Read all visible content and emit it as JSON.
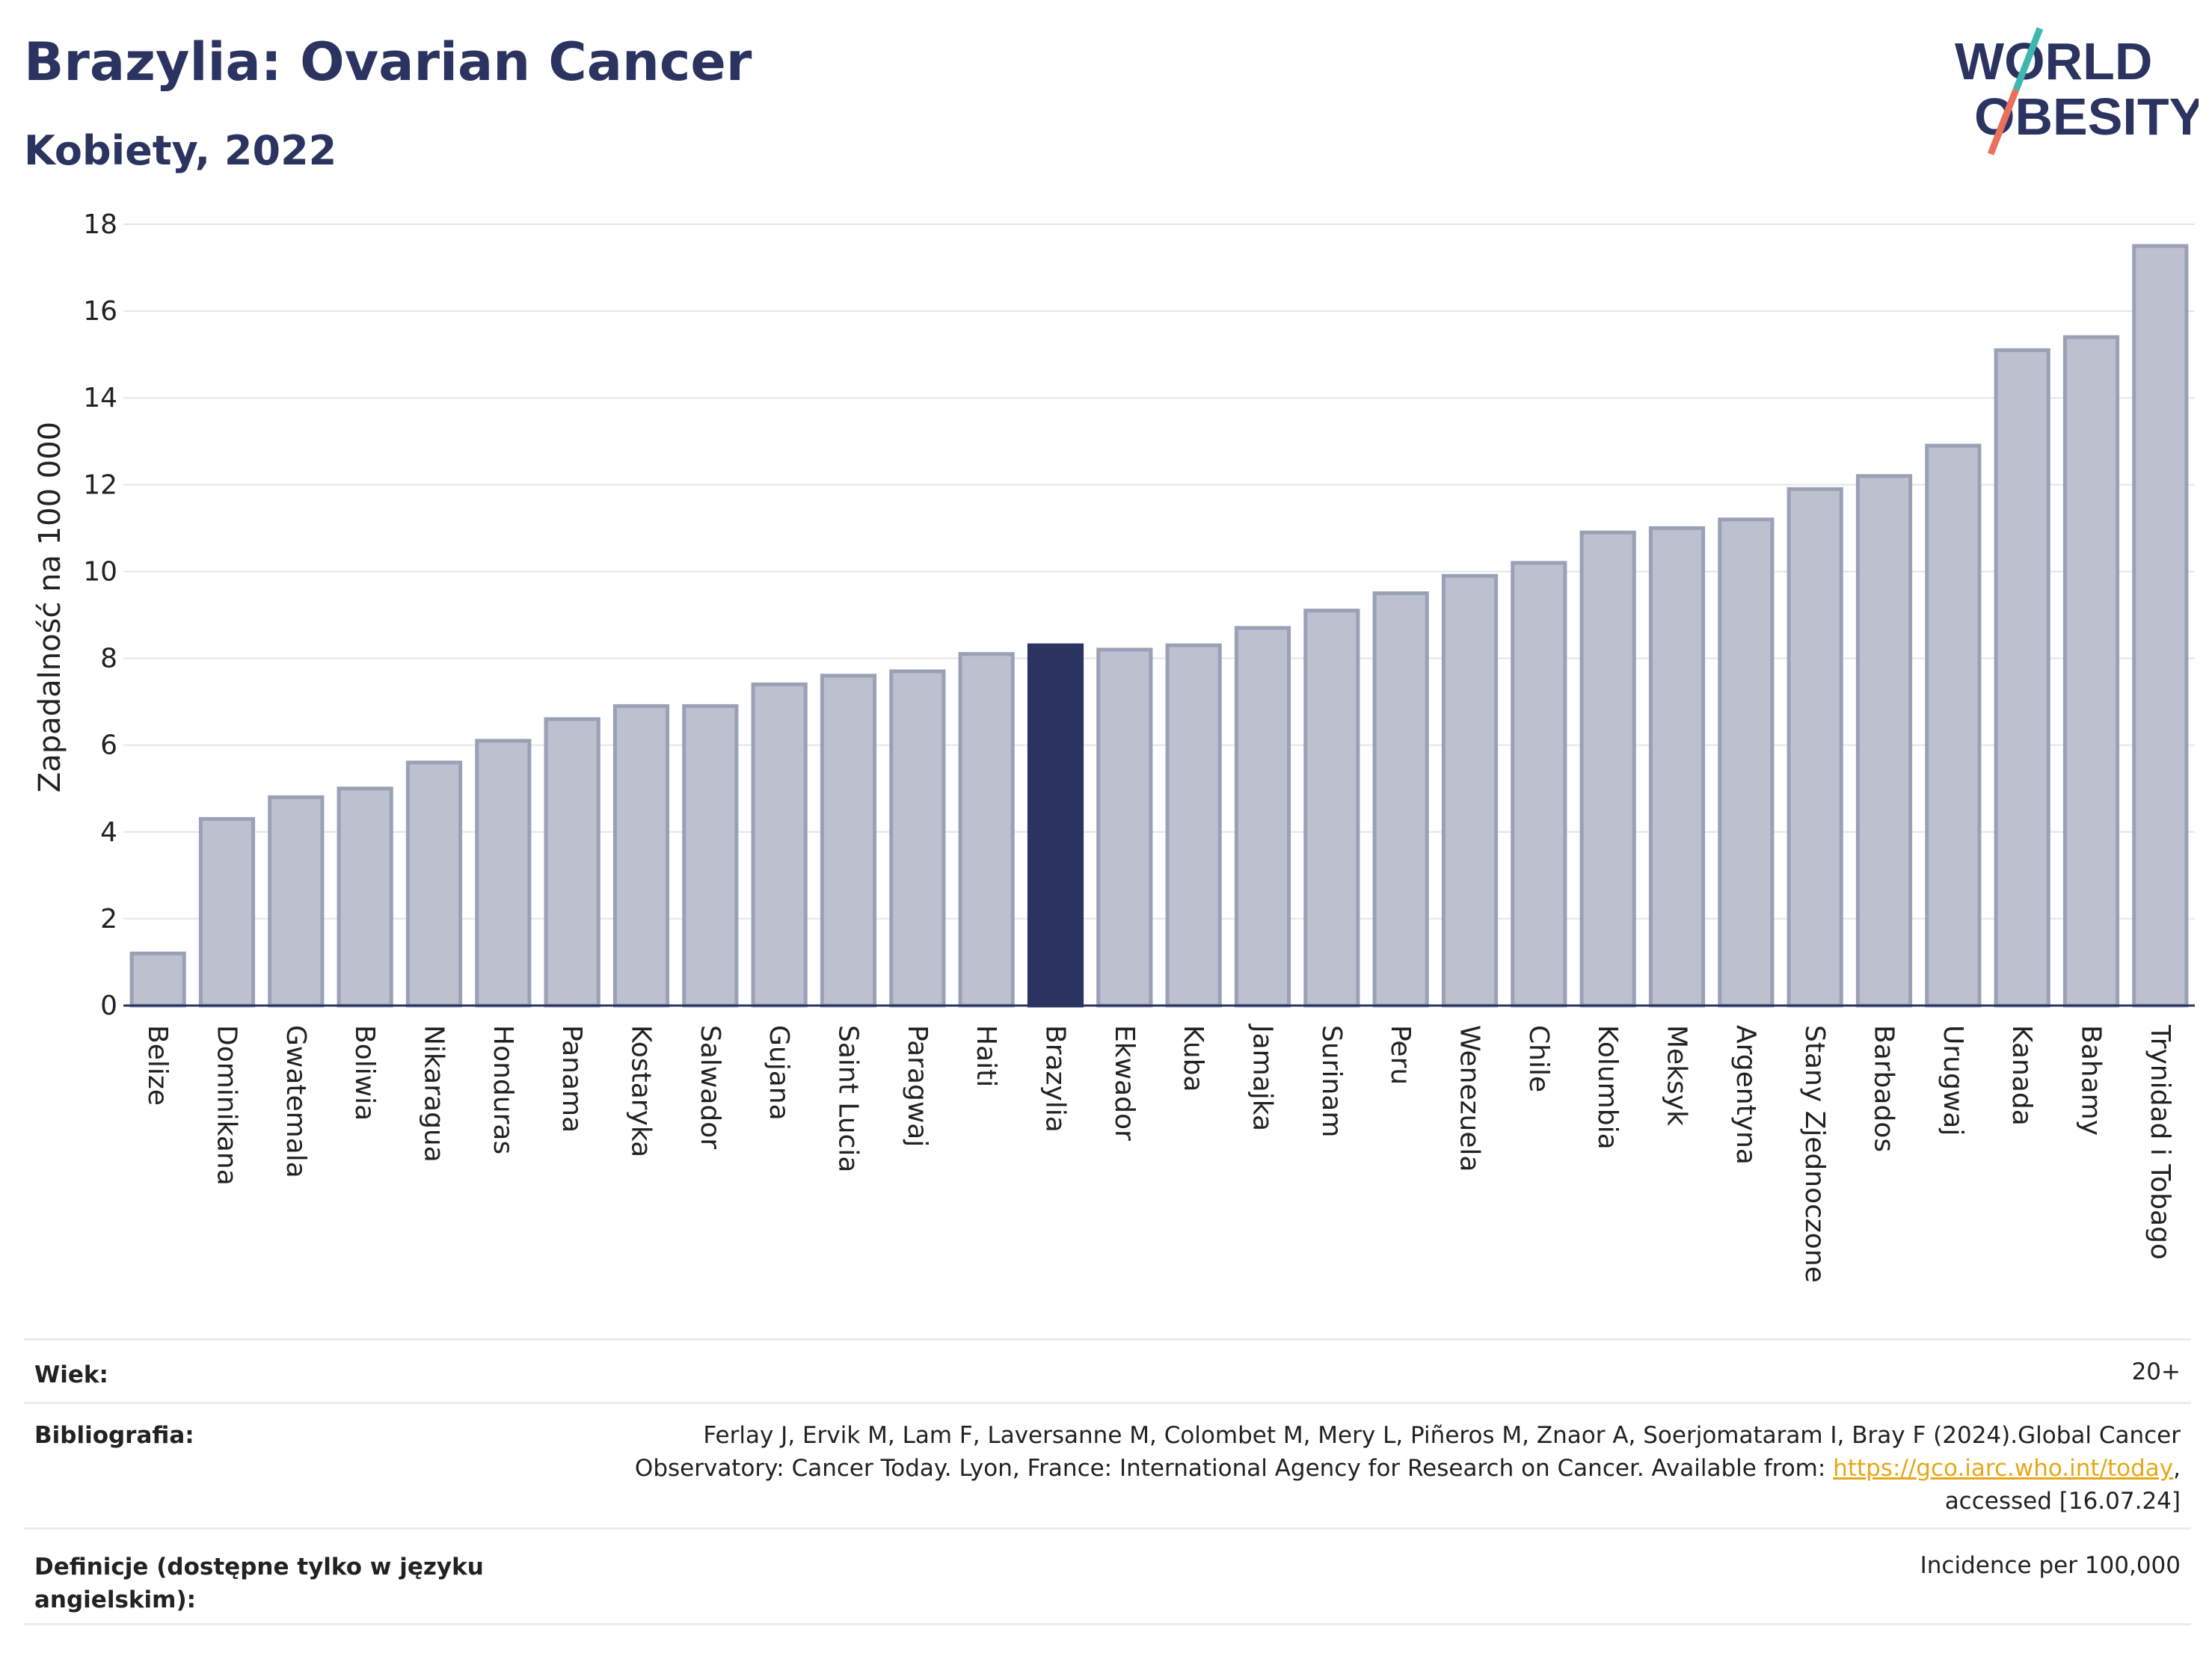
{
  "header": {
    "title": "Brazylia: Ovarian Cancer",
    "subtitle": "Kobiety, 2022",
    "logo_line1": "WORLD",
    "logo_line2": "OBESITY"
  },
  "colors": {
    "bar": "#bcc0cf",
    "bar_stroke": "#9aa0b6",
    "highlight": "#2b3460",
    "accent_teal": "#3fb7b1",
    "accent_coral": "#e8705c"
  },
  "chart_data": {
    "type": "bar",
    "ylabel": "Zapadalność na 100 000",
    "ylim": [
      0,
      18
    ],
    "yticks": [
      0,
      2,
      4,
      6,
      8,
      10,
      12,
      14,
      16,
      18
    ],
    "grid": true,
    "highlight": "Brazylia",
    "categories": [
      "Belize",
      "Dominikana",
      "Gwatemala",
      "Boliwia",
      "Nikaragua",
      "Honduras",
      "Panama",
      "Kostaryka",
      "Salwador",
      "Gujana",
      "Saint Lucia",
      "Paragwaj",
      "Haiti",
      "Brazylia",
      "Ekwador",
      "Kuba",
      "Jamajka",
      "Surinam",
      "Peru",
      "Wenezuela",
      "Chile",
      "Kolumbia",
      "Meksyk",
      "Argentyna",
      "Stany Zjednoczone",
      "Barbados",
      "Urugwaj",
      "Kanada",
      "Bahamy",
      "Trynidad i Tobago"
    ],
    "values": [
      1.2,
      4.3,
      4.8,
      5.0,
      5.6,
      6.1,
      6.6,
      6.9,
      6.9,
      7.4,
      7.6,
      7.7,
      8.1,
      8.3,
      8.2,
      8.3,
      8.7,
      9.1,
      9.5,
      9.9,
      10.2,
      10.9,
      11.0,
      11.2,
      11.9,
      12.2,
      12.9,
      15.1,
      15.4,
      17.5
    ]
  },
  "info": {
    "age_label": "Wiek:",
    "age_value": "20+",
    "bib_label": "Bibliografia:",
    "bib_line1": "Ferlay J, Ervik M, Lam F, Laversanne M, Colombet M, Mery L, Piñeros M, Znaor A, Soerjomataram I, Bray F (2024).Global Cancer",
    "bib_line2_pre": "Observatory: Cancer Today. Lyon, France: International Agency for Research on Cancer. Available from: ",
    "bib_link": "https://gco.iarc.who.int/today",
    "bib_line2_post": ",",
    "bib_line3": "accessed [16.07.24]",
    "def_label": "Definicje (dostępne tylko w języku angielskim):",
    "def_value": "Incidence per 100,000"
  }
}
